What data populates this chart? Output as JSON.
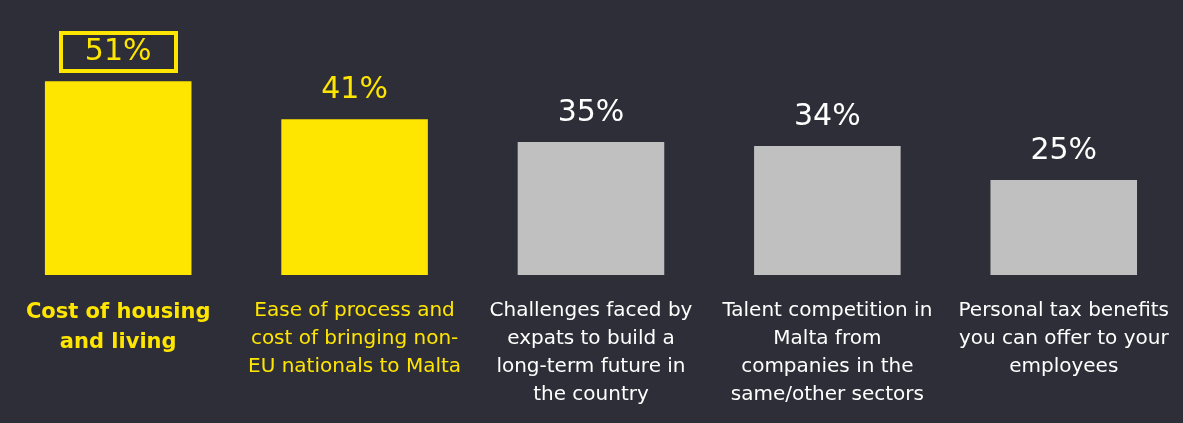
{
  "chart_data": {
    "type": "bar",
    "categories": [
      "Cost of housing and living",
      "Ease of process and cost of bringing non-EU nationals to Malta",
      "Challenges faced by expats to build a long-term future in the country",
      "Talent competition in Malta from companies in the same/other sectors",
      "Personal tax benefits you can offer to your employees"
    ],
    "values": [
      51,
      41,
      35,
      34,
      25
    ],
    "value_labels": [
      "51%",
      "41%",
      "35%",
      "34%",
      "25%"
    ],
    "colors": [
      "#ffe600",
      "#ffe600",
      "#c0c0c0",
      "#c0c0c0",
      "#c0c0c0"
    ],
    "tick_labels": "x",
    "grid": false,
    "legend": false
  }
}
